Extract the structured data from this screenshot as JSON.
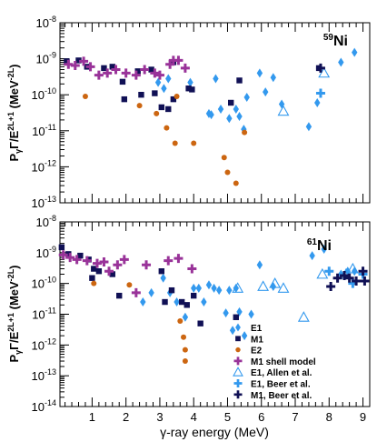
{
  "chart_data": [
    {
      "type": "scatter",
      "panel_label": "59Ni",
      "panel_label_sup": "59",
      "panel_label_base": "Ni",
      "ylabel": "P_{γ}Γ/E^{2L+1} (MeV^{-2L})",
      "ylabel_main": "P",
      "ylabel_sub": "γ",
      "ylabel_mid": "Γ/E",
      "ylabel_sup": "2L+1",
      "ylabel_unit_pre": " (MeV",
      "ylabel_unit_sup": "-2L",
      "ylabel_unit_post": ")",
      "log_y": true,
      "ylim": [
        1e-13,
        1e-08
      ],
      "xlim": [
        0.05,
        9.2
      ],
      "y_tick_labels": [
        {
          "base": "10",
          "exp": "-13"
        },
        {
          "base": "10",
          "exp": "-12"
        },
        {
          "base": "10",
          "exp": "-11"
        },
        {
          "base": "10",
          "exp": "-10"
        },
        {
          "base": "10",
          "exp": "-9"
        },
        {
          "base": "10",
          "exp": "-8"
        }
      ],
      "series": [
        {
          "key": "E1",
          "marker": "diamond",
          "color": "#3399ee",
          "points": [
            [
              2.95,
              2.2e-10
            ],
            [
              3.12,
              1.5e-10
            ],
            [
              3.25,
              2.8e-10
            ],
            [
              3.9,
              2.2e-10
            ],
            [
              4.45,
              3e-11
            ],
            [
              4.52,
              2.8e-11
            ],
            [
              4.65,
              2.8e-10
            ],
            [
              4.8,
              4e-11
            ],
            [
              5.05,
              2.2e-11
            ],
            [
              5.25,
              4e-11
            ],
            [
              5.35,
              2.5e-11
            ],
            [
              5.48,
              1.1e-11
            ],
            [
              5.57,
              8.5e-11
            ],
            [
              5.95,
              4e-10
            ],
            [
              6.12,
              1.2e-10
            ],
            [
              6.35,
              3e-10
            ],
            [
              6.6,
              5.5e-11
            ],
            [
              7.4,
              1.3e-11
            ],
            [
              7.65,
              6e-11
            ],
            [
              8.35,
              8e-10
            ],
            [
              8.75,
              1.5e-09
            ]
          ]
        },
        {
          "key": "M1",
          "marker": "square",
          "color": "#101055",
          "points": [
            [
              0.25,
              8.5e-10
            ],
            [
              0.6,
              9e-10
            ],
            [
              0.85,
              6e-10
            ],
            [
              1.35,
              5.5e-10
            ],
            [
              1.6,
              6e-10
            ],
            [
              1.9,
              2.3e-10
            ],
            [
              1.95,
              7.5e-11
            ],
            [
              2.35,
              4.5e-10
            ],
            [
              2.45,
              1e-10
            ],
            [
              2.75,
              5e-10
            ],
            [
              2.85,
              1.1e-10
            ],
            [
              3.05,
              4.5e-11
            ],
            [
              3.4,
              8e-10
            ],
            [
              3.25,
              4e-11
            ],
            [
              3.4,
              7.5e-11
            ],
            [
              3.85,
              1.5e-10
            ],
            [
              3.95,
              1.4e-10
            ],
            [
              5.35,
              2.5e-10
            ],
            [
              5.1,
              6e-11
            ],
            [
              7.7,
              5.5e-10
            ]
          ]
        },
        {
          "key": "E2",
          "marker": "circle",
          "color": "#cc6611",
          "points": [
            [
              0.8,
              9e-11
            ],
            [
              2.4,
              5e-11
            ],
            [
              2.9,
              3e-11
            ],
            [
              3.2,
              1.2e-11
            ],
            [
              3.45,
              4.5e-12
            ],
            [
              3.5,
              9e-11
            ],
            [
              4.0,
              4.5e-12
            ],
            [
              4.9,
              1.8e-12
            ],
            [
              5.0,
              7e-13
            ],
            [
              5.25,
              3.5e-13
            ],
            [
              5.5,
              9e-12
            ]
          ]
        },
        {
          "key": "M1 shell model",
          "marker": "plus",
          "color": "#993399",
          "points": [
            [
              0.3,
              7e-10
            ],
            [
              0.5,
              6.5e-10
            ],
            [
              0.75,
              8.5e-10
            ],
            [
              0.95,
              6e-10
            ],
            [
              1.2,
              3.5e-10
            ],
            [
              1.45,
              4e-10
            ],
            [
              1.7,
              5e-10
            ],
            [
              2.0,
              4e-10
            ],
            [
              2.3,
              3.5e-10
            ],
            [
              2.55,
              5e-10
            ],
            [
              2.85,
              4e-10
            ],
            [
              3.0,
              3.5e-10
            ],
            [
              3.3,
              7e-10
            ],
            [
              3.55,
              9e-10
            ],
            [
              3.75,
              5.5e-10
            ],
            [
              3.4,
              9e-10
            ]
          ]
        },
        {
          "key": "E1, Allen et al.",
          "marker": "triangle",
          "color": "#3399ee",
          "points": [
            [
              6.65,
              3.5e-11
            ],
            [
              7.85,
              4e-10
            ]
          ]
        },
        {
          "key": "E1, Beer et al.",
          "marker": "plus",
          "color": "#3399ee",
          "points": [
            [
              7.75,
              1.1e-10
            ]
          ]
        },
        {
          "key": "M1, Beer et al.",
          "marker": "plus",
          "color": "#101055",
          "points": [
            [
              7.75,
              5.5e-10
            ]
          ]
        }
      ]
    },
    {
      "type": "scatter",
      "panel_label": "61Ni",
      "panel_label_sup": "61",
      "panel_label_base": "Ni",
      "xlabel": "γ-ray energy (MeV)",
      "xlabel_gamma": "γ",
      "xlabel_rest": "-ray energy (MeV)",
      "ylabel": "P_{γ}Γ/E^{2L+1} (MeV^{-2L})",
      "ylabel_main": "P",
      "ylabel_sub": "γ",
      "ylabel_mid": "Γ/E",
      "ylabel_sup": "2L+1",
      "ylabel_unit_pre": " (MeV",
      "ylabel_unit_sup": "-2L",
      "ylabel_unit_post": ")",
      "log_y": true,
      "ylim": [
        1e-14,
        1e-08
      ],
      "xlim": [
        0.05,
        9.2
      ],
      "x_ticks": [
        "1",
        "2",
        "3",
        "4",
        "5",
        "6",
        "7",
        "8",
        "9"
      ],
      "y_tick_labels": [
        {
          "base": "10",
          "exp": "-14"
        },
        {
          "base": "10",
          "exp": "-13"
        },
        {
          "base": "10",
          "exp": "-12"
        },
        {
          "base": "10",
          "exp": "-11"
        },
        {
          "base": "10",
          "exp": "-10"
        },
        {
          "base": "10",
          "exp": "-9"
        },
        {
          "base": "10",
          "exp": "-8"
        }
      ],
      "legend": [
        "E1",
        "M1",
        "E2",
        "M1 shell model",
        "E1, Allen et al.",
        "E1, Beer et al.",
        "M1, Beer et al."
      ],
      "legend_position": "bottom-right",
      "series": [
        {
          "key": "E1",
          "marker": "diamond",
          "color": "#3399ee",
          "points": [
            [
              2.5,
              2.5e-11
            ],
            [
              2.75,
              5e-11
            ],
            [
              3.1,
              1.5e-10
            ],
            [
              3.3,
              5e-11
            ],
            [
              3.5,
              2.5e-11
            ],
            [
              3.75,
              8e-12
            ],
            [
              4.0,
              7e-11
            ],
            [
              4.15,
              7e-11
            ],
            [
              4.3,
              2.5e-11
            ],
            [
              4.45,
              9e-11
            ],
            [
              4.6,
              7e-11
            ],
            [
              4.75,
              6e-11
            ],
            [
              4.95,
              1.1e-11
            ],
            [
              5.05,
              6e-11
            ],
            [
              5.15,
              3e-12
            ],
            [
              5.25,
              7e-11
            ],
            [
              5.35,
              1.2e-11
            ],
            [
              5.5,
              2e-12
            ],
            [
              5.7,
              1e-11
            ],
            [
              5.95,
              4e-10
            ],
            [
              6.35,
              8e-11
            ],
            [
              7.5,
              8e-10
            ],
            [
              7.85,
              1.3e-09
            ],
            [
              8.35,
              2e-10
            ],
            [
              8.55,
              2.5e-10
            ],
            [
              8.75,
              2.5e-10
            ]
          ]
        },
        {
          "key": "M1",
          "marker": "square",
          "color": "#101055",
          "points": [
            [
              0.1,
              1.5e-09
            ],
            [
              0.3,
              9e-10
            ],
            [
              0.65,
              8e-10
            ],
            [
              0.9,
              6e-10
            ],
            [
              1.0,
              1.5e-10
            ],
            [
              1.05,
              3e-10
            ],
            [
              1.2,
              2.5e-10
            ],
            [
              1.6,
              2e-10
            ],
            [
              1.8,
              4e-11
            ],
            [
              3.05,
              2.5e-10
            ],
            [
              3.15,
              2.5e-11
            ],
            [
              3.35,
              6e-11
            ],
            [
              3.65,
              2.5e-11
            ],
            [
              3.8,
              2e-11
            ],
            [
              4.0,
              4e-11
            ],
            [
              5.25,
              8e-12
            ],
            [
              4.2,
              5e-12
            ]
          ]
        },
        {
          "key": "E2",
          "marker": "circle",
          "color": "#cc6611",
          "points": [
            [
              1.05,
              1e-10
            ],
            [
              2.1,
              9e-11
            ],
            [
              3.6,
              6e-12
            ],
            [
              3.7,
              1.8e-12
            ],
            [
              3.75,
              7e-13
            ],
            [
              3.75,
              3e-13
            ]
          ]
        },
        {
          "key": "M1 shell model",
          "marker": "plus",
          "color": "#993399",
          "points": [
            [
              0.15,
              8.5e-10
            ],
            [
              0.35,
              7e-10
            ],
            [
              0.55,
              6e-10
            ],
            [
              0.85,
              5.5e-10
            ],
            [
              1.15,
              4.5e-10
            ],
            [
              1.35,
              5e-10
            ],
            [
              1.5,
              2.5e-10
            ],
            [
              1.75,
              4e-10
            ],
            [
              1.95,
              6e-10
            ],
            [
              2.3,
              5e-11
            ],
            [
              2.6,
              4e-10
            ],
            [
              3.25,
              5.5e-10
            ],
            [
              3.55,
              6.5e-10
            ],
            [
              3.95,
              3e-10
            ]
          ]
        },
        {
          "key": "E1, Allen et al.",
          "marker": "triangle",
          "color": "#3399ee",
          "points": [
            [
              5.3,
              7e-11
            ],
            [
              6.05,
              8e-11
            ],
            [
              6.4,
              1e-10
            ],
            [
              6.65,
              7e-11
            ],
            [
              7.25,
              8e-12
            ],
            [
              7.8,
              2e-10
            ],
            [
              8.5,
              2e-10
            ],
            [
              8.7,
              3e-10
            ]
          ]
        },
        {
          "key": "E1, Beer et al.",
          "marker": "plus",
          "color": "#3399ee",
          "points": [
            [
              8.0,
              2.5e-10
            ],
            [
              8.7,
              1e-10
            ],
            [
              9.0,
              2e-10
            ]
          ]
        },
        {
          "key": "M1, Beer et al.",
          "marker": "plus",
          "color": "#101055",
          "points": [
            [
              8.05,
              8e-11
            ],
            [
              8.25,
              1.5e-10
            ],
            [
              8.45,
              1.8e-10
            ],
            [
              8.6,
              1.5e-10
            ],
            [
              8.8,
              1.2e-10
            ],
            [
              9.0,
              2.5e-10
            ],
            [
              9.05,
              1.2e-10
            ]
          ]
        }
      ]
    }
  ]
}
